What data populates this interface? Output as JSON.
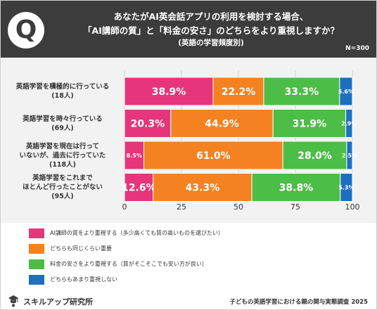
{
  "header": {
    "badge_letter": "Q",
    "title_line1": "あなたがAI英会話アプリの利用を検討する場合、",
    "title_line2": "「AI講師の質」と「料金の安さ」のどちらをより重視しますか？",
    "title_line3": "(英語の学習頻度別)",
    "n_label": "N=300"
  },
  "colors": {
    "series": [
      "#e6357a",
      "#f58220",
      "#4cbe47",
      "#1f6fbf"
    ],
    "header_bg": "#3c3c3c",
    "plot_bg": "#f2f2f2"
  },
  "chart_data": {
    "type": "bar",
    "orientation": "horizontal",
    "stacked": true,
    "categories": [
      "英語学習を積極的に行っている\n(18人)",
      "英語学習を時々行っている\n(69人)",
      "英語学習を現在は行って\nいないが、過去に行っていた\n(118人)",
      "英語学習をこれまで\nほとんど行ったことがない\n(95人)"
    ],
    "series": [
      {
        "name": "AI講師の質をより重視する（多少高くても質の高いものを選びたい）",
        "values": [
          38.9,
          20.3,
          8.5,
          12.6
        ]
      },
      {
        "name": "どちらも同じくらい重要",
        "values": [
          22.2,
          44.9,
          61.0,
          43.3
        ]
      },
      {
        "name": "料金の安さをより重視する（質がそこそこでも安い方が良い）",
        "values": [
          33.3,
          31.9,
          28.0,
          38.8
        ]
      },
      {
        "name": "どちらもあまり重視しない",
        "values": [
          5.6,
          2.9,
          2.5,
          5.3
        ]
      }
    ],
    "value_labels": [
      [
        "38.9%",
        "22.2%",
        "33.3%",
        "5.6%"
      ],
      [
        "20.3%",
        "44.9%",
        "31.9%",
        "2.9%"
      ],
      [
        "8.5%",
        "61.0%",
        "28.0%",
        "2.5%"
      ],
      [
        "12.6%",
        "43.3%",
        "38.8%",
        "5.3%"
      ]
    ],
    "xlim": [
      0,
      100
    ],
    "xticks": [
      "0",
      "25",
      "50",
      "75",
      "100"
    ],
    "grid": true,
    "legend_position": "bottom-left"
  },
  "footer": {
    "logo_text": "スキルアップ研究所",
    "source": "子どもの英語学習における親の関与実態調査 2025"
  }
}
